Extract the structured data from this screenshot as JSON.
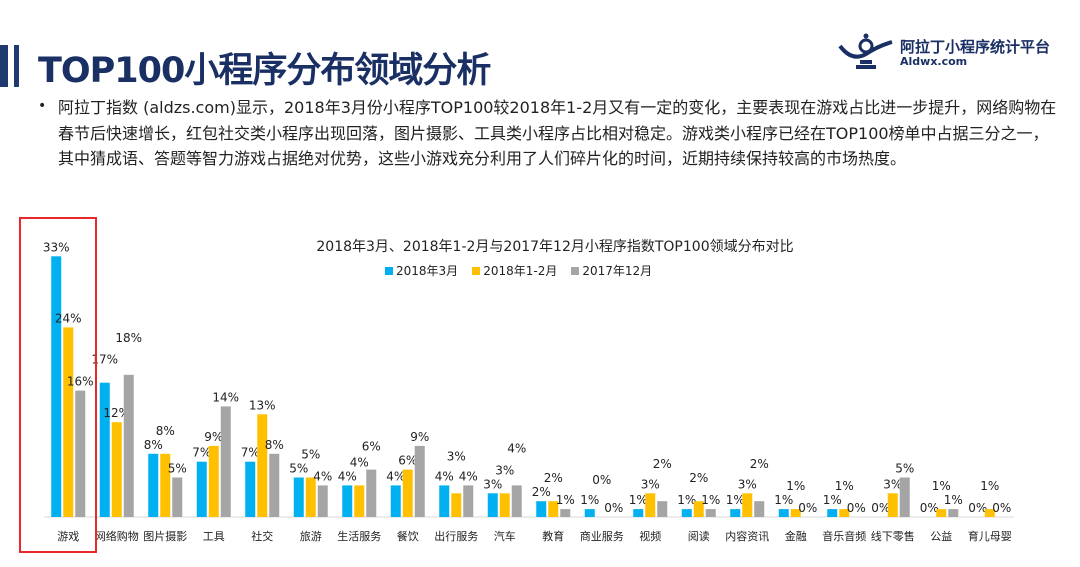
{
  "page": {
    "title": "TOP100小程序分布领域分析",
    "logo_text": "阿拉丁小程序统计平台",
    "logo_sub": "Aldwx.com",
    "watermark": "阿拉丁指数 Aldzs.com",
    "paragraph": "阿拉丁指数 (aldzs.com)显示，2018年3月份小程序TOP100较2018年1-2月又有一定的变化，主要表现在游戏占比进一步提升，网络购物在春节后快速增长，红包社交类小程序出现回落，图片摄影、工具类小程序占比相对稳定。游戏类小程序已经在TOP100榜单中占据三分之一，其中猜成语、答题等智力游戏占据绝对优势，这些小游戏充分利用了人们碎片化的时间，近期持续保持较高的市场热度。",
    "bullet": "•"
  },
  "colors": {
    "series1": "#00b0f0",
    "series2": "#ffc000",
    "series3": "#a5a5a5",
    "highlight": "#e8282a",
    "title": "#1a2f63"
  },
  "chart_data": {
    "type": "bar",
    "title": "2018年3月、2018年1-2月与2017年12月小程序指数TOP100领域分布对比",
    "legend_position": "top",
    "grid": false,
    "ylim": [
      0,
      35
    ],
    "categories": [
      "游戏",
      "网络购物",
      "图片摄影",
      "工具",
      "社交",
      "旅游",
      "生活服务",
      "餐饮",
      "出行服务",
      "汽车",
      "教育",
      "商业服务",
      "视频",
      "阅读",
      "内容资讯",
      "金融",
      "音乐音频",
      "线下零售",
      "公益",
      "育儿母婴"
    ],
    "series": [
      {
        "name": "2018年3月",
        "values": [
          33,
          17,
          8,
          7,
          7,
          5,
          4,
          4,
          4,
          3,
          2,
          1,
          1,
          1,
          1,
          1,
          1,
          0,
          0,
          0
        ]
      },
      {
        "name": "2018年1-2月",
        "values": [
          24,
          12,
          8,
          9,
          13,
          5,
          4,
          6,
          3,
          3,
          2,
          0,
          3,
          2,
          3,
          1,
          1,
          3,
          1,
          1
        ]
      },
      {
        "name": "2017年12月",
        "values": [
          16,
          18,
          5,
          14,
          8,
          4,
          6,
          9,
          4,
          4,
          1,
          0,
          2,
          1,
          2,
          0,
          0,
          5,
          1,
          0
        ]
      }
    ],
    "value_suffix": "%",
    "highlighted_category": "游戏"
  }
}
